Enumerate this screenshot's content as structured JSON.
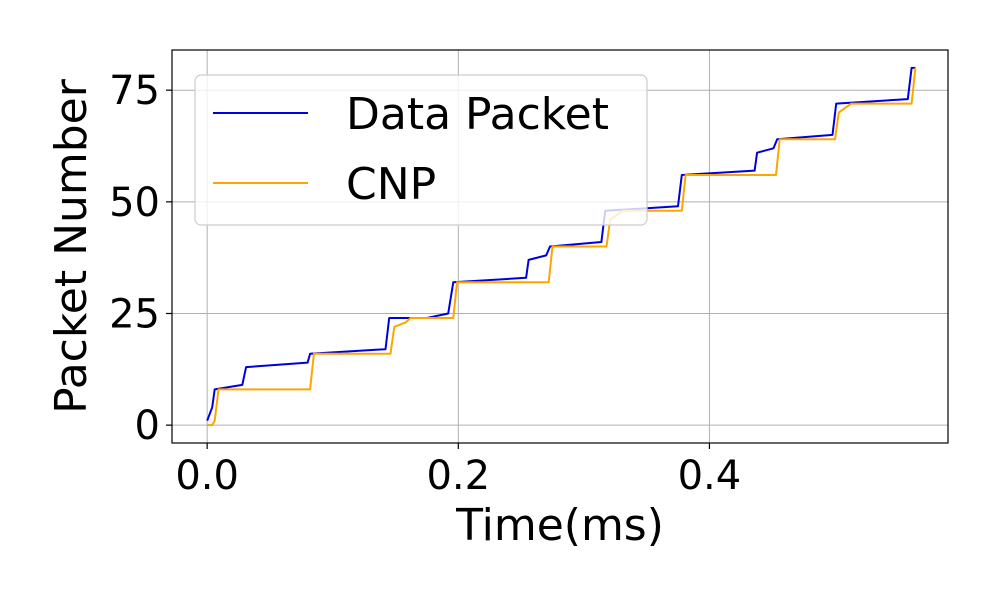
{
  "chart_data": {
    "type": "line",
    "title": "",
    "xlabel": "Time(ms)",
    "ylabel": "Packet Number",
    "xlim": [
      -0.028,
      0.59
    ],
    "ylim": [
      -4,
      84
    ],
    "xticks": [
      0.0,
      0.2,
      0.4
    ],
    "xtick_labels": [
      "0.0",
      "0.2",
      "0.4"
    ],
    "yticks": [
      0,
      25,
      50,
      75
    ],
    "ytick_labels": [
      "0",
      "25",
      "50",
      "75"
    ],
    "grid": true,
    "legend_position": "top-left",
    "series": [
      {
        "name": "Data Packet",
        "color": "#0000dd",
        "points": [
          [
            0.0,
            1
          ],
          [
            0.004,
            4
          ],
          [
            0.006,
            8
          ],
          [
            0.028,
            9
          ],
          [
            0.031,
            13
          ],
          [
            0.08,
            14
          ],
          [
            0.082,
            16
          ],
          [
            0.142,
            17
          ],
          [
            0.145,
            24
          ],
          [
            0.175,
            24
          ],
          [
            0.192,
            25
          ],
          [
            0.196,
            32
          ],
          [
            0.254,
            33
          ],
          [
            0.256,
            37
          ],
          [
            0.27,
            38
          ],
          [
            0.273,
            40
          ],
          [
            0.314,
            41
          ],
          [
            0.317,
            48
          ],
          [
            0.375,
            49
          ],
          [
            0.378,
            56
          ],
          [
            0.436,
            57
          ],
          [
            0.438,
            61
          ],
          [
            0.451,
            62
          ],
          [
            0.454,
            64
          ],
          [
            0.498,
            65
          ],
          [
            0.501,
            72
          ],
          [
            0.558,
            73
          ],
          [
            0.561,
            80
          ],
          [
            0.564,
            80
          ]
        ]
      },
      {
        "name": "CNP",
        "color": "#ffa500",
        "points": [
          [
            0.0,
            0
          ],
          [
            0.004,
            0
          ],
          [
            0.006,
            1
          ],
          [
            0.009,
            8
          ],
          [
            0.082,
            8
          ],
          [
            0.085,
            16
          ],
          [
            0.146,
            16
          ],
          [
            0.149,
            22
          ],
          [
            0.158,
            23
          ],
          [
            0.162,
            24
          ],
          [
            0.196,
            24
          ],
          [
            0.199,
            32
          ],
          [
            0.272,
            32
          ],
          [
            0.275,
            40
          ],
          [
            0.318,
            40
          ],
          [
            0.321,
            46
          ],
          [
            0.331,
            48
          ],
          [
            0.378,
            48
          ],
          [
            0.381,
            56
          ],
          [
            0.453,
            56
          ],
          [
            0.456,
            64
          ],
          [
            0.5,
            64
          ],
          [
            0.503,
            70
          ],
          [
            0.513,
            72
          ],
          [
            0.561,
            72
          ],
          [
            0.564,
            80
          ]
        ]
      }
    ]
  }
}
